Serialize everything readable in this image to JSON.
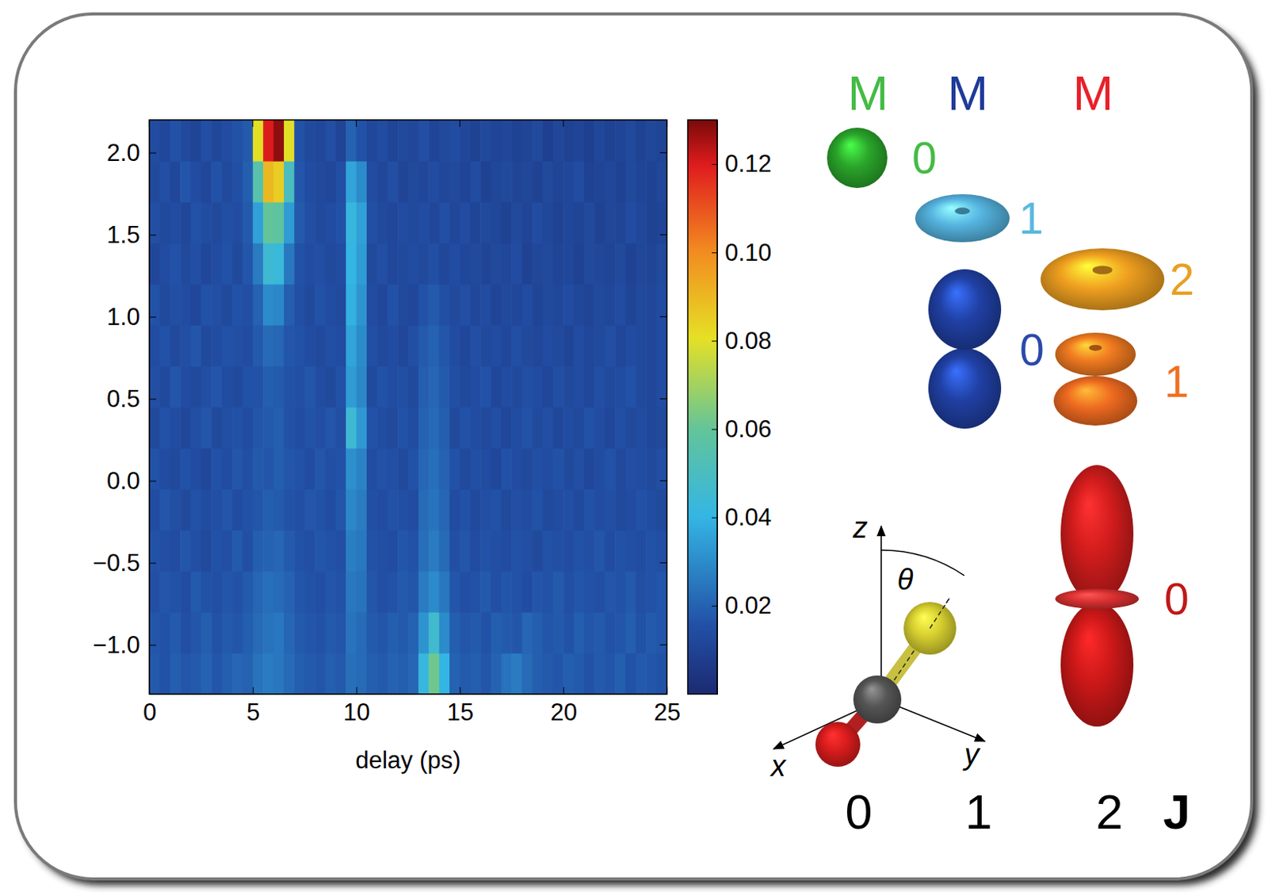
{
  "chart_data": {
    "type": "heatmap",
    "x_label": "delay (ps)",
    "xlim": [
      0,
      25
    ],
    "xticks": [
      0,
      5,
      10,
      15,
      20,
      25
    ],
    "ylim": [
      -1.3,
      2.2
    ],
    "yticks": [
      {
        "value": -1,
        "label": "−1.0"
      },
      {
        "value": -0.5,
        "label": "−0.5"
      },
      {
        "value": 0,
        "label": "0.0"
      },
      {
        "value": 0.5,
        "label": "0.5"
      },
      {
        "value": 1,
        "label": "1.0"
      },
      {
        "value": 1.5,
        "label": "1.5"
      },
      {
        "value": 2,
        "label": "2.0"
      }
    ],
    "x_bins": [
      0,
      0.5,
      1,
      1.5,
      2,
      2.5,
      3,
      3.5,
      4,
      4.5,
      5,
      5.5,
      6,
      6.5,
      7,
      7.5,
      8,
      8.5,
      9,
      9.5,
      10,
      10.5,
      11,
      11.5,
      12,
      12.5,
      13,
      13.5,
      14,
      14.5,
      15,
      15.5,
      16,
      16.5,
      17,
      17.5,
      18,
      18.5,
      19,
      19.5,
      20,
      20.5,
      21,
      21.5,
      22,
      22.5,
      23,
      23.5,
      24,
      24.5,
      25
    ],
    "y_bins": [
      -1.3,
      -1.05,
      -0.8,
      -0.55,
      -0.3,
      -0.05,
      0.2,
      0.45,
      0.7,
      0.95,
      1.2,
      1.45,
      1.7,
      1.95,
      2.2
    ],
    "z": [
      [
        0.018,
        0.016,
        0.019,
        0.017,
        0.018,
        0.02,
        0.017,
        0.019,
        0.021,
        0.02,
        0.024,
        0.026,
        0.025,
        0.022,
        0.019,
        0.018,
        0.017,
        0.019,
        0.018,
        0.023,
        0.022,
        0.019,
        0.018,
        0.02,
        0.019,
        0.021,
        0.042,
        0.062,
        0.04,
        0.02,
        0.018,
        0.019,
        0.017,
        0.02,
        0.024,
        0.026,
        0.022,
        0.019,
        0.018,
        0.017,
        0.019,
        0.018,
        0.016,
        0.018,
        0.017,
        0.019,
        0.016,
        0.018,
        0.017,
        0.016
      ],
      [
        0.017,
        0.016,
        0.018,
        0.015,
        0.017,
        0.019,
        0.016,
        0.018,
        0.017,
        0.019,
        0.022,
        0.024,
        0.025,
        0.021,
        0.018,
        0.017,
        0.016,
        0.018,
        0.017,
        0.024,
        0.022,
        0.018,
        0.017,
        0.019,
        0.018,
        0.02,
        0.032,
        0.046,
        0.03,
        0.019,
        0.017,
        0.018,
        0.016,
        0.019,
        0.018,
        0.017,
        0.021,
        0.019,
        0.017,
        0.018,
        0.016,
        0.019,
        0.017,
        0.018,
        0.016,
        0.017,
        0.019,
        0.016,
        0.018,
        0.017
      ],
      [
        0.015,
        0.017,
        0.016,
        0.014,
        0.018,
        0.016,
        0.015,
        0.017,
        0.016,
        0.018,
        0.021,
        0.023,
        0.022,
        0.02,
        0.017,
        0.016,
        0.015,
        0.017,
        0.016,
        0.025,
        0.024,
        0.017,
        0.015,
        0.016,
        0.018,
        0.017,
        0.026,
        0.03,
        0.025,
        0.017,
        0.015,
        0.016,
        0.018,
        0.015,
        0.017,
        0.016,
        0.014,
        0.017,
        0.016,
        0.018,
        0.015,
        0.017,
        0.016,
        0.015,
        0.017,
        0.016,
        0.018,
        0.015,
        0.016,
        0.017
      ],
      [
        0.016,
        0.015,
        0.014,
        0.017,
        0.015,
        0.013,
        0.016,
        0.015,
        0.018,
        0.015,
        0.019,
        0.02,
        0.021,
        0.018,
        0.016,
        0.015,
        0.017,
        0.016,
        0.015,
        0.027,
        0.025,
        0.016,
        0.015,
        0.014,
        0.017,
        0.016,
        0.023,
        0.026,
        0.022,
        0.015,
        0.017,
        0.014,
        0.016,
        0.015,
        0.014,
        0.016,
        0.015,
        0.013,
        0.016,
        0.015,
        0.014,
        0.016,
        0.015,
        0.017,
        0.014,
        0.016,
        0.015,
        0.014,
        0.016,
        0.015
      ],
      [
        0.014,
        0.017,
        0.015,
        0.013,
        0.016,
        0.014,
        0.015,
        0.017,
        0.014,
        0.016,
        0.017,
        0.019,
        0.018,
        0.016,
        0.015,
        0.017,
        0.016,
        0.014,
        0.017,
        0.029,
        0.026,
        0.015,
        0.014,
        0.016,
        0.015,
        0.014,
        0.022,
        0.024,
        0.021,
        0.014,
        0.016,
        0.013,
        0.015,
        0.016,
        0.013,
        0.015,
        0.014,
        0.016,
        0.013,
        0.014,
        0.015,
        0.013,
        0.016,
        0.014,
        0.015,
        0.013,
        0.014,
        0.016,
        0.014,
        0.013
      ],
      [
        0.016,
        0.014,
        0.013,
        0.016,
        0.014,
        0.012,
        0.016,
        0.014,
        0.017,
        0.015,
        0.018,
        0.017,
        0.019,
        0.017,
        0.016,
        0.014,
        0.017,
        0.015,
        0.016,
        0.031,
        0.028,
        0.014,
        0.016,
        0.015,
        0.013,
        0.016,
        0.021,
        0.023,
        0.02,
        0.016,
        0.013,
        0.015,
        0.014,
        0.012,
        0.016,
        0.014,
        0.013,
        0.015,
        0.014,
        0.016,
        0.013,
        0.015,
        0.012,
        0.014,
        0.016,
        0.013,
        0.015,
        0.014,
        0.013,
        0.015
      ],
      [
        0.013,
        0.016,
        0.014,
        0.012,
        0.015,
        0.017,
        0.013,
        0.015,
        0.016,
        0.014,
        0.017,
        0.018,
        0.019,
        0.016,
        0.014,
        0.016,
        0.015,
        0.017,
        0.015,
        0.045,
        0.033,
        0.016,
        0.014,
        0.013,
        0.016,
        0.014,
        0.02,
        0.022,
        0.019,
        0.013,
        0.016,
        0.014,
        0.013,
        0.015,
        0.012,
        0.014,
        0.016,
        0.013,
        0.015,
        0.012,
        0.014,
        0.013,
        0.016,
        0.014,
        0.012,
        0.015,
        0.013,
        0.014,
        0.012,
        0.013
      ],
      [
        0.015,
        0.013,
        0.017,
        0.014,
        0.013,
        0.015,
        0.017,
        0.014,
        0.013,
        0.016,
        0.016,
        0.019,
        0.018,
        0.016,
        0.015,
        0.017,
        0.014,
        0.013,
        0.016,
        0.034,
        0.029,
        0.013,
        0.016,
        0.014,
        0.015,
        0.013,
        0.019,
        0.021,
        0.018,
        0.015,
        0.013,
        0.014,
        0.016,
        0.012,
        0.014,
        0.013,
        0.015,
        0.014,
        0.012,
        0.015,
        0.013,
        0.014,
        0.012,
        0.015,
        0.013,
        0.014,
        0.016,
        0.013,
        0.012,
        0.014
      ],
      [
        0.014,
        0.016,
        0.013,
        0.015,
        0.017,
        0.013,
        0.014,
        0.016,
        0.015,
        0.014,
        0.018,
        0.022,
        0.021,
        0.017,
        0.016,
        0.014,
        0.013,
        0.015,
        0.014,
        0.036,
        0.03,
        0.015,
        0.013,
        0.014,
        0.012,
        0.015,
        0.018,
        0.02,
        0.017,
        0.014,
        0.012,
        0.015,
        0.013,
        0.014,
        0.012,
        0.015,
        0.013,
        0.012,
        0.014,
        0.013,
        0.011,
        0.014,
        0.012,
        0.013,
        0.015,
        0.012,
        0.014,
        0.013,
        0.012,
        0.014
      ],
      [
        0.016,
        0.013,
        0.015,
        0.014,
        0.012,
        0.016,
        0.015,
        0.013,
        0.016,
        0.015,
        0.02,
        0.03,
        0.029,
        0.019,
        0.015,
        0.013,
        0.016,
        0.014,
        0.013,
        0.039,
        0.032,
        0.014,
        0.012,
        0.016,
        0.013,
        0.012,
        0.016,
        0.018,
        0.015,
        0.013,
        0.015,
        0.012,
        0.014,
        0.011,
        0.013,
        0.012,
        0.014,
        0.011,
        0.013,
        0.012,
        0.014,
        0.012,
        0.011,
        0.013,
        0.012,
        0.014,
        0.011,
        0.013,
        0.012,
        0.014
      ],
      [
        0.012,
        0.014,
        0.016,
        0.013,
        0.015,
        0.012,
        0.014,
        0.016,
        0.013,
        0.017,
        0.026,
        0.045,
        0.043,
        0.025,
        0.016,
        0.014,
        0.015,
        0.013,
        0.014,
        0.04,
        0.034,
        0.013,
        0.015,
        0.012,
        0.013,
        0.014,
        0.013,
        0.015,
        0.012,
        0.014,
        0.012,
        0.013,
        0.011,
        0.013,
        0.012,
        0.014,
        0.01,
        0.012,
        0.013,
        0.011,
        0.012,
        0.01,
        0.013,
        0.012,
        0.011,
        0.013,
        0.01,
        0.012,
        0.011,
        0.013
      ],
      [
        0.015,
        0.013,
        0.014,
        0.012,
        0.016,
        0.014,
        0.013,
        0.015,
        0.014,
        0.018,
        0.035,
        0.06,
        0.058,
        0.034,
        0.018,
        0.015,
        0.013,
        0.014,
        0.016,
        0.042,
        0.035,
        0.015,
        0.013,
        0.012,
        0.014,
        0.013,
        0.014,
        0.012,
        0.015,
        0.012,
        0.014,
        0.011,
        0.013,
        0.012,
        0.01,
        0.013,
        0.011,
        0.014,
        0.012,
        0.01,
        0.012,
        0.011,
        0.013,
        0.01,
        0.012,
        0.011,
        0.014,
        0.012,
        0.01,
        0.011
      ],
      [
        0.013,
        0.015,
        0.012,
        0.017,
        0.014,
        0.012,
        0.016,
        0.013,
        0.015,
        0.019,
        0.055,
        0.09,
        0.085,
        0.05,
        0.017,
        0.014,
        0.013,
        0.012,
        0.015,
        0.036,
        0.03,
        0.014,
        0.012,
        0.015,
        0.011,
        0.013,
        0.012,
        0.014,
        0.012,
        0.013,
        0.011,
        0.014,
        0.01,
        0.012,
        0.013,
        0.011,
        0.012,
        0.01,
        0.013,
        0.011,
        0.012,
        0.014,
        0.01,
        0.011,
        0.012,
        0.01,
        0.013,
        0.011,
        0.01,
        0.012
      ],
      [
        0.014,
        0.012,
        0.016,
        0.013,
        0.011,
        0.015,
        0.012,
        0.014,
        0.016,
        0.018,
        0.08,
        0.12,
        0.128,
        0.08,
        0.016,
        0.013,
        0.012,
        0.015,
        0.011,
        0.02,
        0.016,
        0.012,
        0.014,
        0.011,
        0.013,
        0.012,
        0.015,
        0.011,
        0.013,
        0.014,
        0.012,
        0.01,
        0.013,
        0.011,
        0.012,
        0.01,
        0.011,
        0.013,
        0.009,
        0.012,
        0.01,
        0.011,
        0.009,
        0.012,
        0.01,
        0.011,
        0.013,
        0.01,
        0.012,
        0.011
      ]
    ],
    "colorbar": {
      "range": [
        0,
        0.13
      ],
      "ticks": [
        0.02,
        0.04,
        0.06,
        0.08,
        {
          "value": 0.1,
          "label": "0.10"
        },
        0.12
      ]
    },
    "annotations": {
      "m_header": "M",
      "j_header": "J",
      "j_values": [
        0,
        1,
        2
      ],
      "states": [
        {
          "j": 0,
          "m": 0
        },
        {
          "j": 1,
          "m": 1
        },
        {
          "j": 1,
          "m": 0
        },
        {
          "j": 2,
          "m": 2
        },
        {
          "j": 2,
          "m": 1
        },
        {
          "j": 2,
          "m": 0
        }
      ],
      "axes": [
        "x",
        "y",
        "z"
      ],
      "angle": "θ"
    }
  }
}
